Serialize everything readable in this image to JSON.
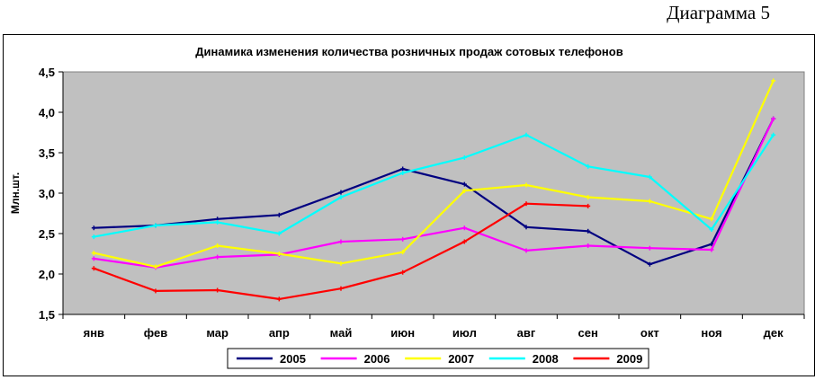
{
  "caption": "Диаграмма 5",
  "chart_data": {
    "type": "line",
    "title": "Динамика изменения количества розничных продаж сотовых телефонов",
    "xlabel": "",
    "ylabel": "Млн.шт.",
    "ylim": [
      1.5,
      4.5
    ],
    "yticks": [
      1.5,
      2.0,
      2.5,
      3.0,
      3.5,
      4.0,
      4.5
    ],
    "ytick_labels": [
      "1,5",
      "2,0",
      "2,5",
      "3,0",
      "3,5",
      "4,0",
      "4,5"
    ],
    "categories": [
      "янв",
      "фев",
      "мар",
      "апр",
      "май",
      "июн",
      "июл",
      "авг",
      "сен",
      "окт",
      "ноя",
      "дек"
    ],
    "grid": false,
    "plot_background": "#c0c0c0",
    "legend_position": "bottom",
    "series": [
      {
        "name": "2005",
        "color": "#000080",
        "values": [
          2.57,
          2.6,
          2.68,
          2.73,
          3.01,
          3.3,
          3.11,
          2.58,
          2.53,
          2.12,
          2.37,
          3.92
        ]
      },
      {
        "name": "2006",
        "color": "#ff00ff",
        "values": [
          2.19,
          2.08,
          2.21,
          2.24,
          2.4,
          2.43,
          2.57,
          2.29,
          2.35,
          2.32,
          2.3,
          3.92
        ]
      },
      {
        "name": "2007",
        "color": "#ffff00",
        "values": [
          2.26,
          2.09,
          2.35,
          2.25,
          2.13,
          2.27,
          3.03,
          3.1,
          2.95,
          2.9,
          2.68,
          4.39
        ]
      },
      {
        "name": "2008",
        "color": "#00ffff",
        "values": [
          2.46,
          2.6,
          2.64,
          2.5,
          2.95,
          3.25,
          3.44,
          3.72,
          3.33,
          3.2,
          2.55,
          3.72
        ]
      },
      {
        "name": "2009",
        "color": "#ff0000",
        "values": [
          2.07,
          1.79,
          1.8,
          1.69,
          1.82,
          2.02,
          2.4,
          2.87,
          2.84,
          null,
          null,
          null
        ]
      }
    ]
  }
}
